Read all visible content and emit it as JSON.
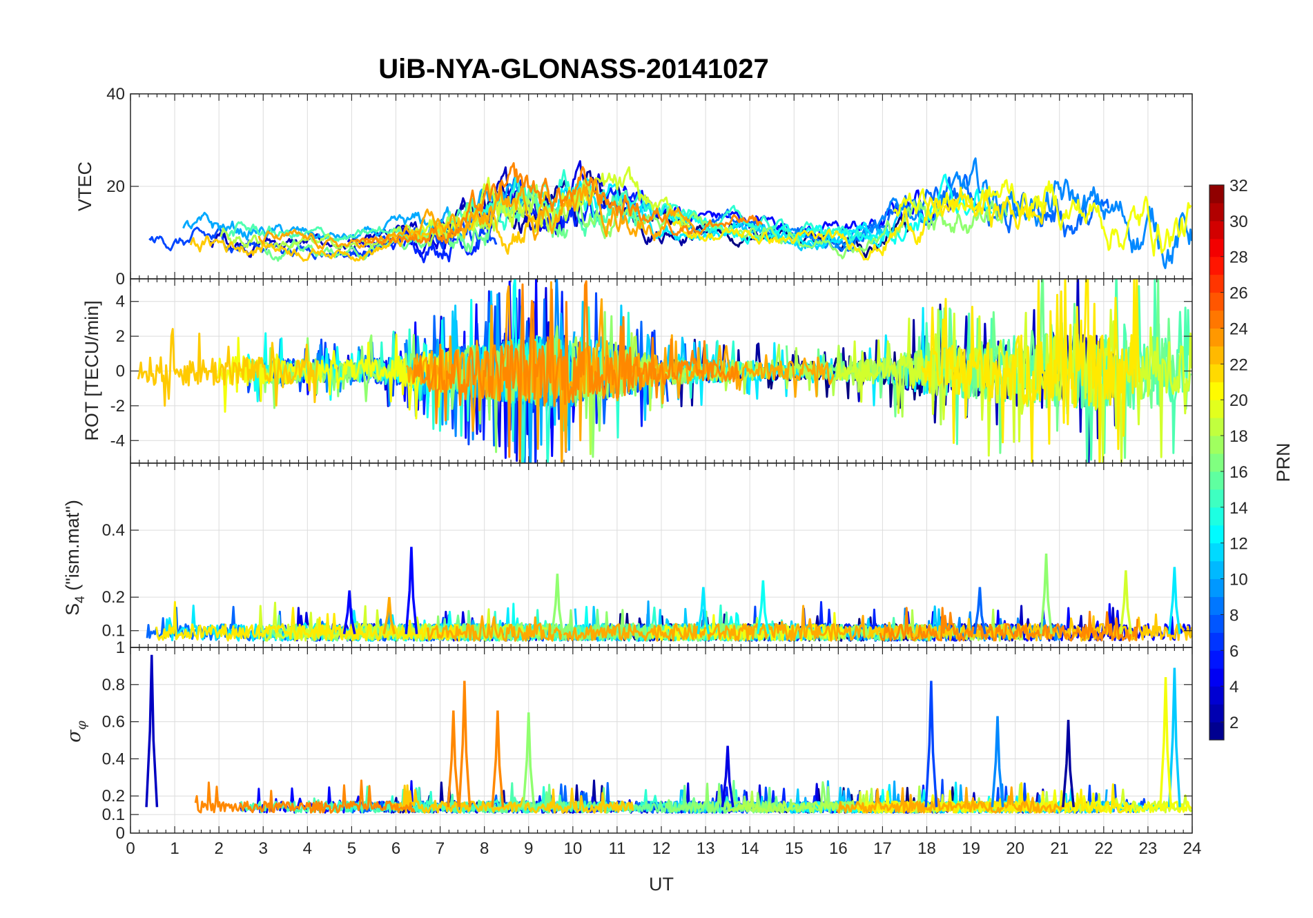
{
  "chart_data": {
    "type": "line",
    "title": "UiB-NYA-GLONASS-20141027",
    "x": {
      "label": "UT",
      "range": [
        0,
        24
      ],
      "ticks": [
        0,
        1,
        2,
        3,
        4,
        5,
        6,
        7,
        8,
        9,
        10,
        11,
        12,
        13,
        14,
        15,
        16,
        17,
        18,
        19,
        20,
        21,
        22,
        23,
        24
      ]
    },
    "colorbar": {
      "label": "PRN",
      "range": [
        1,
        32
      ],
      "ticks": [
        2,
        4,
        6,
        8,
        10,
        12,
        14,
        16,
        18,
        20,
        22,
        24,
        26,
        28,
        30,
        32
      ],
      "colormap": "jet"
    },
    "panels": [
      {
        "id": "vtec",
        "ylabel": "VTEC",
        "ylim": [
          0,
          40
        ],
        "yticks": [
          0,
          20,
          40
        ],
        "envelope": {
          "x": [
            0,
            1,
            2,
            3,
            4,
            5,
            6,
            7,
            7.5,
            8,
            9,
            10,
            11,
            12,
            13,
            14,
            15,
            16,
            17,
            17.5,
            18,
            19,
            20,
            21,
            22,
            23,
            24
          ],
          "base": [
            9,
            9,
            8.5,
            8.5,
            7.5,
            7,
            8.5,
            10,
            12,
            14,
            16,
            17,
            16,
            13,
            12,
            11,
            10,
            9,
            10,
            14,
            16,
            16,
            16,
            15,
            12,
            10,
            10
          ],
          "amp": [
            2.5,
            3,
            4,
            3,
            2.5,
            2,
            3,
            5,
            6,
            7,
            8,
            8,
            7,
            4,
            3,
            3,
            3,
            3,
            4,
            6,
            7,
            8,
            8,
            9,
            8,
            10,
            10
          ]
        }
      },
      {
        "id": "rot",
        "ylabel": "ROT [TECU/min]",
        "ylim": [
          -5.3,
          5.3
        ],
        "yticks": [
          -4,
          -2,
          0,
          2,
          4
        ],
        "envelope": {
          "x": [
            0,
            2,
            4,
            5,
            6,
            7,
            8,
            9,
            10,
            11,
            12,
            13,
            14,
            15,
            16,
            17,
            18,
            19,
            20,
            21,
            22,
            23,
            24
          ],
          "amp": [
            1.8,
            2.0,
            1.5,
            1.4,
            1.8,
            2.8,
            3.5,
            4.5,
            4.5,
            3.5,
            1.8,
            1.5,
            1.3,
            1.2,
            1.2,
            1.6,
            3.0,
            3.5,
            4.5,
            5.0,
            4.5,
            5.0,
            3.0
          ]
        }
      },
      {
        "id": "s4",
        "ylabel": "S4 (\"ism.mat\")",
        "ylabel_main": "S",
        "ylabel_sub": "4",
        "ylabel_rest": " (\"ism.mat\")",
        "ylim": [
          0.05,
          0.6
        ],
        "yticks": [
          0.1,
          0.2,
          0.4
        ],
        "peaks": [
          {
            "x": 6.35,
            "y": 0.35,
            "prn": 5
          },
          {
            "x": 4.95,
            "y": 0.22,
            "prn": 5
          },
          {
            "x": 20.7,
            "y": 0.33,
            "prn": 17
          },
          {
            "x": 9.65,
            "y": 0.27,
            "prn": 17
          },
          {
            "x": 22.5,
            "y": 0.28,
            "prn": 19
          },
          {
            "x": 23.6,
            "y": 0.29,
            "prn": 12
          },
          {
            "x": 14.3,
            "y": 0.25,
            "prn": 13
          },
          {
            "x": 19.2,
            "y": 0.23,
            "prn": 8
          },
          {
            "x": 12.95,
            "y": 0.23,
            "prn": 12
          },
          {
            "x": 5.85,
            "y": 0.2,
            "prn": 23
          }
        ]
      },
      {
        "id": "sigma_phi",
        "ylabel": "σφ",
        "ylabel_main": "σ",
        "ylabel_sub": "φ",
        "ylim": [
          0,
          1
        ],
        "yticks": [
          0,
          0.1,
          0.2,
          0.4,
          0.6,
          0.8,
          1
        ],
        "peaks": [
          {
            "x": 0.48,
            "y": 0.96,
            "prn": 3
          },
          {
            "x": 7.3,
            "y": 0.66,
            "prn": 24
          },
          {
            "x": 7.55,
            "y": 0.82,
            "prn": 24
          },
          {
            "x": 8.3,
            "y": 0.66,
            "prn": 24
          },
          {
            "x": 9.0,
            "y": 0.65,
            "prn": 17
          },
          {
            "x": 18.1,
            "y": 0.82,
            "prn": 7
          },
          {
            "x": 19.6,
            "y": 0.63,
            "prn": 9
          },
          {
            "x": 23.6,
            "y": 0.89,
            "prn": 11
          },
          {
            "x": 23.4,
            "y": 0.84,
            "prn": 20
          },
          {
            "x": 13.5,
            "y": 0.47,
            "prn": 4
          },
          {
            "x": 21.2,
            "y": 0.61,
            "prn": 2
          }
        ]
      }
    ],
    "series_count": 24,
    "series_prn": [
      1,
      2,
      3,
      4,
      5,
      6,
      7,
      8,
      9,
      10,
      11,
      12,
      13,
      14,
      15,
      16,
      17,
      18,
      19,
      20,
      21,
      22,
      23,
      24
    ]
  }
}
